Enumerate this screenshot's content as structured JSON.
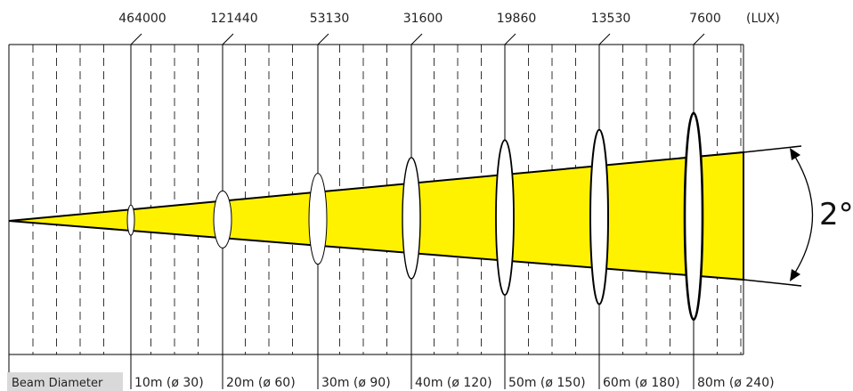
{
  "unit_label": "(LUX)",
  "angle_label": "2°",
  "legend_label": "Beam Diameter",
  "beam_color": "#FFF200",
  "legend_bg": "#D9D9D9",
  "lux_values": [
    "464000",
    "121440",
    "53130",
    "31600",
    "19860",
    "13530",
    "7600"
  ],
  "distance_labels": [
    "10m (ø 30)",
    "20m (ø 60)",
    "30m (ø 90)",
    "40m (ø 120)",
    "50m (ø 150)",
    "60m (ø 180)",
    "80m (ø 240)"
  ]
}
